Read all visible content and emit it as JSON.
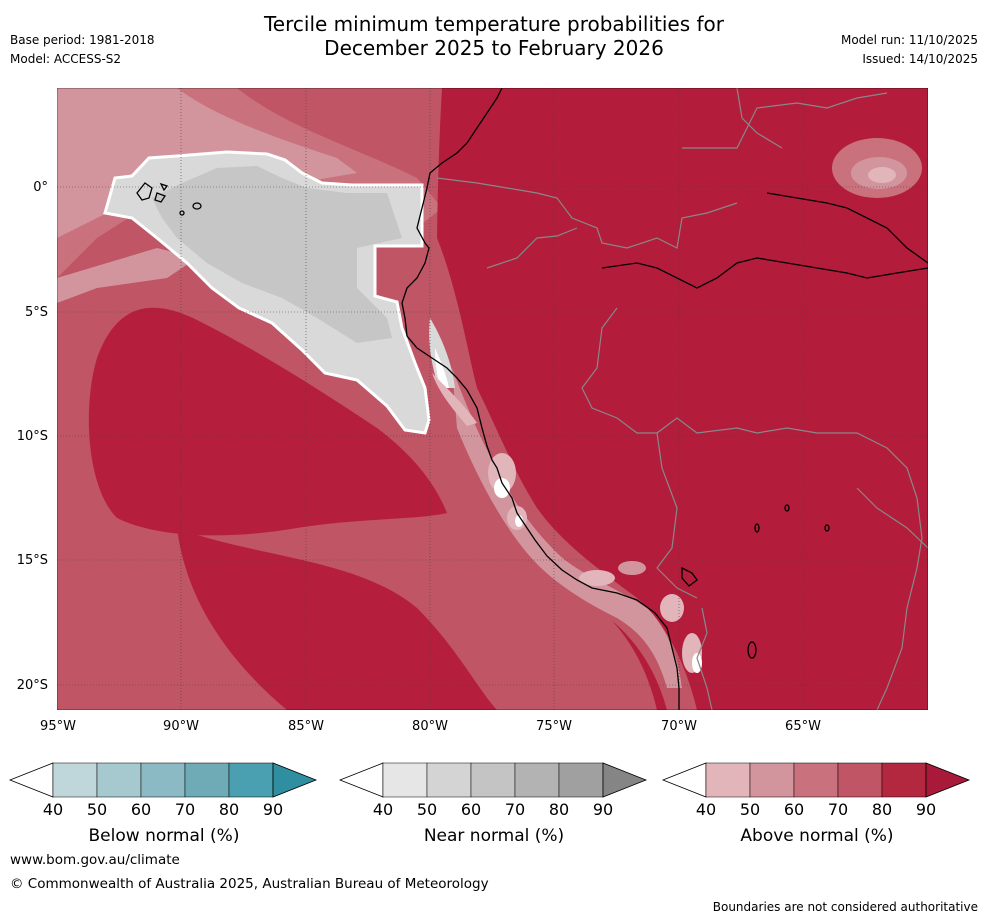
{
  "header": {
    "title_line1": "Tercile minimum temperature probabilities for",
    "title_line2": "December 2025 to February 2026",
    "base_period": "Base period: 1981-2018",
    "model": "Model: ACCESS-S2",
    "model_run": "Model run: 11/10/2025",
    "issued": "Issued: 14/10/2025"
  },
  "map": {
    "lat_labels": [
      "0°",
      "5°S",
      "10°S",
      "15°S",
      "20°S"
    ],
    "lon_labels": [
      "95°W",
      "90°W",
      "85°W",
      "80°W",
      "75°W",
      "70°W",
      "65°W"
    ]
  },
  "legend": {
    "ticks": [
      "40",
      "50",
      "60",
      "70",
      "80",
      "90"
    ],
    "below_label": "Below normal (%)",
    "near_label": "Near normal (%)",
    "above_label": "Above normal (%)",
    "below_colors": [
      "#ffffff",
      "#bfd6db",
      "#a6c8cf",
      "#8bb9c4",
      "#6eabb7",
      "#4aa0b0",
      "#2f8fa0"
    ],
    "near_colors": [
      "#ffffff",
      "#e6e6e6",
      "#d4d4d4",
      "#c4c4c4",
      "#b3b3b3",
      "#a0a0a0",
      "#858585"
    ],
    "above_colors": [
      "#ffffff",
      "#e2b5bb",
      "#d3959d",
      "#c9727e",
      "#c05566",
      "#b3283f",
      "#a8193a"
    ]
  },
  "footer": {
    "url": "www.bom.gov.au/climate",
    "copyright": "© Commonwealth of Australia 2025, Australian Bureau of Meteorology",
    "disclaimer": "Boundaries are not considered authoritative"
  }
}
